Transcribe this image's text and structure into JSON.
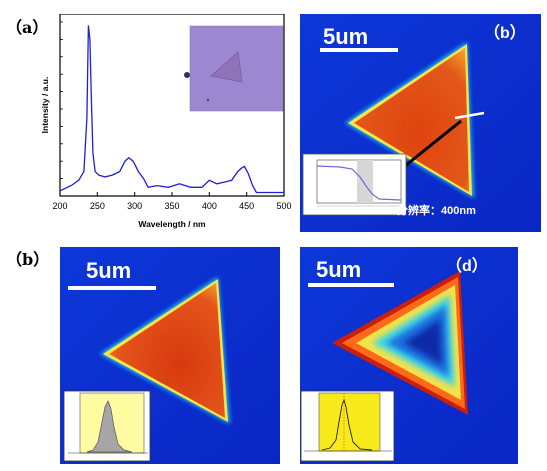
{
  "panels": {
    "a": {
      "label": "（a）",
      "chart_data": {
        "type": "line",
        "xlabel": "Wavelength / nm",
        "ylabel": "Intensity / a.u.",
        "xlim": [
          200,
          500
        ],
        "xticks": [
          "200",
          "250",
          "300",
          "350",
          "400",
          "450",
          "500"
        ],
        "grid": false,
        "series": [
          {
            "color": "#1f1fd6",
            "x": [
              200,
              215,
              225,
              232,
              236,
              238,
              240,
              242,
              244,
              247,
              252,
              260,
              270,
              280,
              287,
              292,
              298,
              305,
              312,
              318,
              330,
              345,
              360,
              375,
              390,
              400,
              410,
              420,
              430,
              438,
              443,
              447,
              452,
              458,
              463,
              470,
              480,
              490,
              500
            ],
            "y": [
              0.03,
              0.06,
              0.09,
              0.14,
              0.45,
              0.98,
              0.9,
              0.55,
              0.25,
              0.14,
              0.12,
              0.11,
              0.12,
              0.14,
              0.2,
              0.22,
              0.2,
              0.14,
              0.1,
              0.05,
              0.06,
              0.05,
              0.07,
              0.05,
              0.05,
              0.09,
              0.07,
              0.08,
              0.09,
              0.14,
              0.16,
              0.17,
              0.13,
              0.06,
              0.02,
              0.02,
              0.02,
              0.02,
              0.02
            ]
          }
        ]
      }
    },
    "b1": {
      "label": "（b）",
      "scale_text": "5um",
      "resolution_text": "分辨率：400nm"
    },
    "b2": {
      "label": "（b）",
      "scale_text": "5um"
    },
    "d": {
      "label": "（d）",
      "scale_text": "5um"
    }
  },
  "colors": {
    "map_background": "#0a2bd0",
    "triangle_core": "#d94a14",
    "triangle_edge": "#f7e94a"
  }
}
